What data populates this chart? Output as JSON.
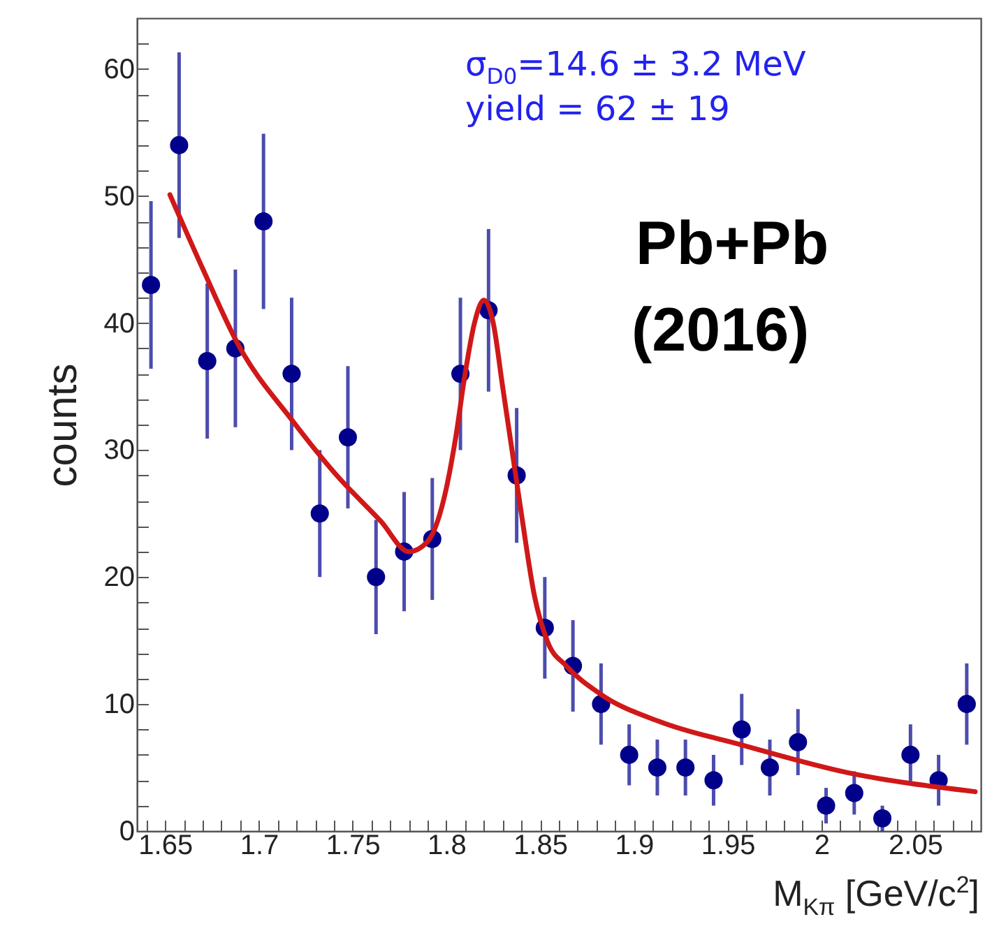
{
  "chart_data": {
    "type": "scatter",
    "xlabel": "M$_{Kπ}$ [GeV/c$^{2}$]",
    "ylabel": "counts",
    "annotations": [
      "σ$_{D0}$=14.6 ± 3.2 MeV",
      "yield = 62 ± 19",
      "Pb+Pb",
      "(2016)"
    ],
    "x": [
      1.6425,
      1.6575,
      1.6725,
      1.6875,
      1.7025,
      1.7175,
      1.7325,
      1.7475,
      1.7625,
      1.7775,
      1.7925,
      1.8075,
      1.8225,
      1.8375,
      1.8525,
      1.8675,
      1.8825,
      1.8975,
      1.9125,
      1.9275,
      1.9425,
      1.9575,
      1.9725,
      1.9875,
      2.0025,
      2.0175,
      2.0325,
      2.0475,
      2.0625,
      2.0775
    ],
    "series": [
      {
        "type": "scatter",
        "marker": "circle",
        "color": "#00008b",
        "values": [
          43,
          54,
          37,
          38,
          48,
          36,
          25,
          31,
          20,
          22,
          23,
          36,
          41,
          28,
          16,
          13,
          10,
          6,
          5,
          5,
          4,
          8,
          5,
          7,
          2,
          3,
          1,
          6,
          4,
          10
        ],
        "errors": [
          6.6,
          7.3,
          6.1,
          6.2,
          6.9,
          6,
          5,
          5.6,
          4.5,
          4.7,
          4.8,
          6,
          6.4,
          5.3,
          4,
          3.6,
          3.2,
          2.4,
          2.2,
          2.2,
          2,
          2.8,
          2.2,
          2.6,
          1.4,
          1.7,
          1,
          2.4,
          2,
          3.2
        ]
      },
      {
        "type": "line",
        "color": "#d01818",
        "x": [
          1.6526,
          1.67,
          1.689,
          1.718,
          1.741,
          1.765,
          1.78,
          1.79,
          1.8,
          1.805,
          1.81,
          1.815,
          1.82,
          1.825,
          1.83,
          1.835,
          1.84,
          1.847,
          1.854,
          1.864,
          1.882,
          1.914,
          1.957,
          2.014,
          2.082
        ],
        "values": [
          50.1,
          44.3,
          38.3,
          32.3,
          28.1,
          24.4,
          22.0,
          22.8,
          27,
          31,
          36,
          40,
          41.8,
          40,
          35,
          30,
          25,
          18.5,
          14.9,
          13.0,
          10.8,
          8.6,
          6.8,
          4.6,
          3.1
        ]
      }
    ],
    "xlim": [
      1.635,
      2.085
    ],
    "xticks": [
      {
        "value": 1.64,
        "label": null
      },
      1.65,
      {
        "value": 1.66,
        "label": null
      },
      {
        "value": 1.67,
        "label": null
      },
      {
        "value": 1.68,
        "label": null
      },
      {
        "value": 1.69,
        "label": null
      },
      1.7,
      {
        "value": 1.71,
        "label": null
      },
      {
        "value": 1.72,
        "label": null
      },
      {
        "value": 1.73,
        "label": null
      },
      {
        "value": 1.74,
        "label": null
      },
      1.75,
      {
        "value": 1.76,
        "label": null
      },
      {
        "value": 1.77,
        "label": null
      },
      {
        "value": 1.78,
        "label": null
      },
      {
        "value": 1.79,
        "label": null
      },
      1.8,
      {
        "value": 1.81,
        "label": null
      },
      {
        "value": 1.82,
        "label": null
      },
      {
        "value": 1.83,
        "label": null
      },
      {
        "value": 1.84,
        "label": null
      },
      1.85,
      {
        "value": 1.86,
        "label": null
      },
      {
        "value": 1.87,
        "label": null
      },
      {
        "value": 1.88,
        "label": null
      },
      {
        "value": 1.89,
        "label": null
      },
      1.9,
      {
        "value": 1.91,
        "label": null
      },
      {
        "value": 1.92,
        "label": null
      },
      {
        "value": 1.93,
        "label": null
      },
      {
        "value": 1.94,
        "label": null
      },
      1.95,
      {
        "value": 1.96,
        "label": null
      },
      {
        "value": 1.97,
        "label": null
      },
      {
        "value": 1.98,
        "label": null
      },
      {
        "value": 1.99,
        "label": null
      },
      2,
      {
        "value": 2.01,
        "label": null
      },
      {
        "value": 2.02,
        "label": null
      },
      {
        "value": 2.03,
        "label": null
      },
      {
        "value": 2.04,
        "label": null
      },
      2.05,
      {
        "value": 2.06,
        "label": null
      },
      {
        "value": 2.07,
        "label": null
      },
      {
        "value": 2.08,
        "label": null
      }
    ],
    "ylim": [
      0,
      64
    ],
    "yticks": [
      0,
      {
        "value": 2,
        "label": null
      },
      {
        "value": 4,
        "label": null
      },
      {
        "value": 6,
        "label": null
      },
      {
        "value": 8,
        "label": null
      },
      10,
      {
        "value": 12,
        "label": null
      },
      {
        "value": 14,
        "label": null
      },
      {
        "value": 16,
        "label": null
      },
      {
        "value": 18,
        "label": null
      },
      20,
      {
        "value": 22,
        "label": null
      },
      {
        "value": 24,
        "label": null
      },
      {
        "value": 26,
        "label": null
      },
      {
        "value": 28,
        "label": null
      },
      30,
      {
        "value": 32,
        "label": null
      },
      {
        "value": 34,
        "label": null
      },
      {
        "value": 36,
        "label": null
      },
      {
        "value": 38,
        "label": null
      },
      40,
      {
        "value": 42,
        "label": null
      },
      {
        "value": 44,
        "label": null
      },
      {
        "value": 46,
        "label": null
      },
      {
        "value": 48,
        "label": null
      },
      50,
      {
        "value": 52,
        "label": null
      },
      {
        "value": 54,
        "label": null
      },
      {
        "value": 56,
        "label": null
      },
      {
        "value": 58,
        "label": null
      },
      60,
      {
        "value": 62,
        "label": null
      }
    ],
    "tick_labels": true
  }
}
